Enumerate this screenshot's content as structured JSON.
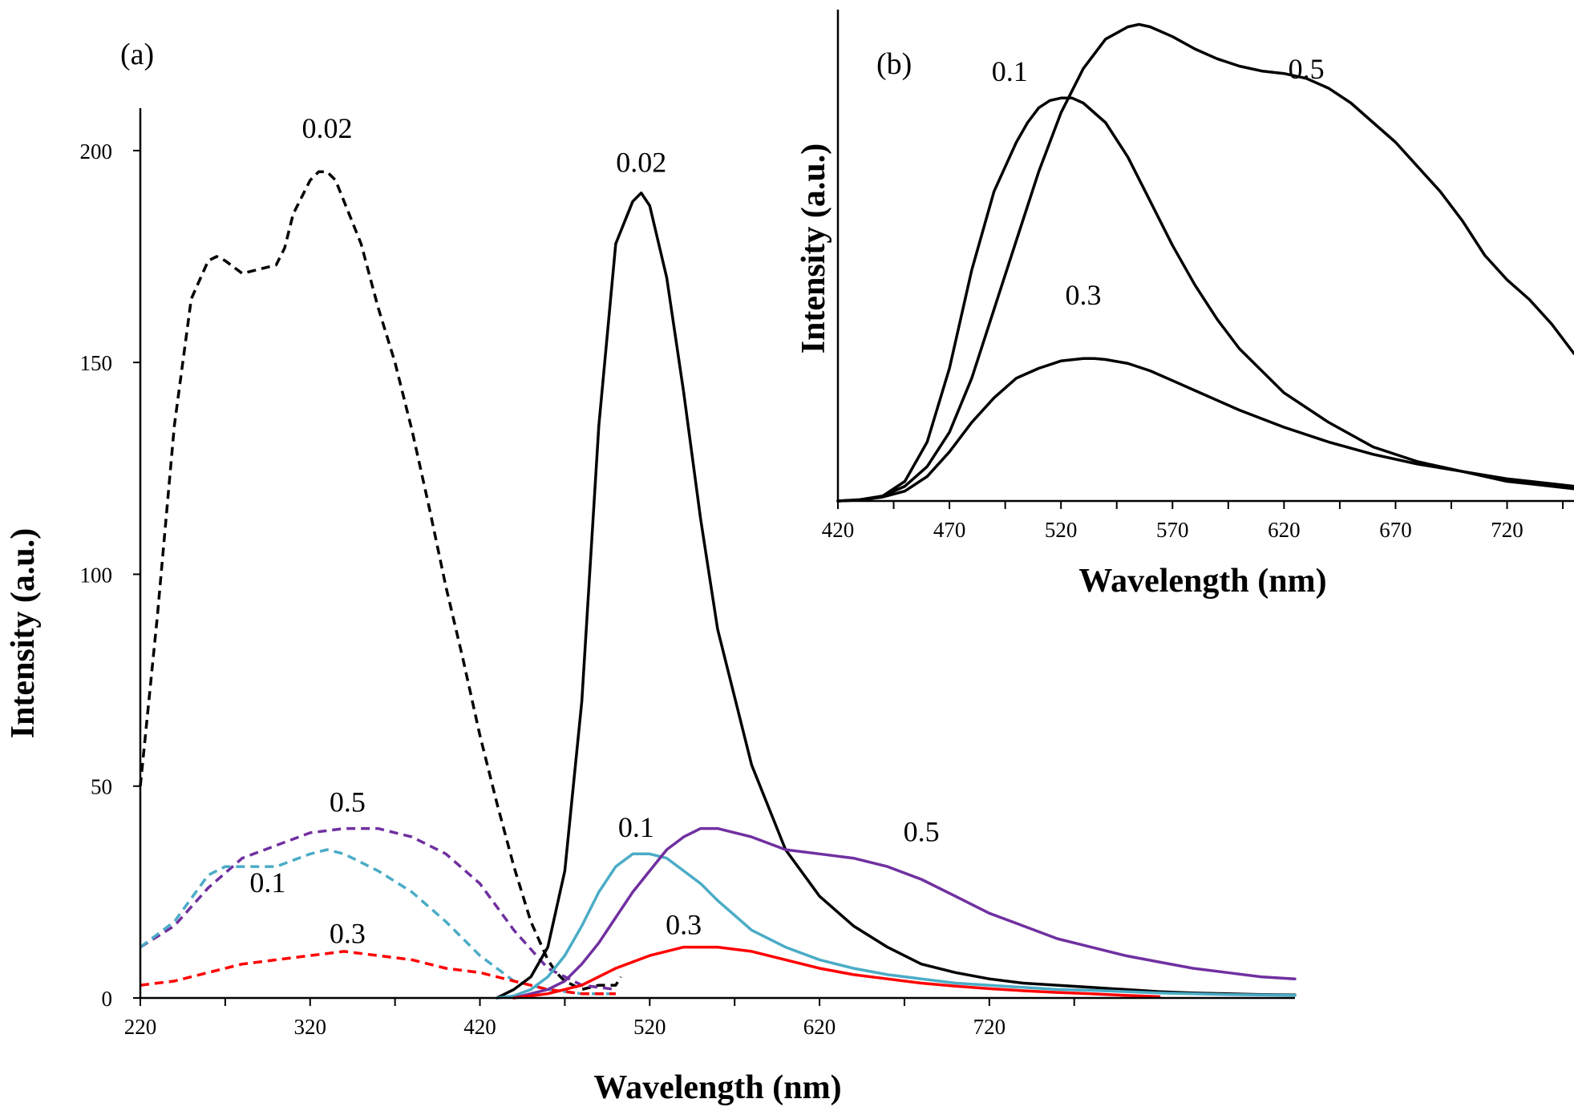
{
  "chart_data": [
    {
      "type": "line",
      "panel_label": "(a)",
      "xlabel": "Wavelength (nm)",
      "ylabel": "Intensity (a.u.)",
      "xlim": [
        220,
        900
      ],
      "ylim": [
        0,
        210
      ],
      "xticks": [
        220,
        320,
        420,
        520,
        620,
        720
      ],
      "yticks": [
        0,
        50,
        100,
        150,
        200
      ],
      "series": [
        {
          "name": "0.02 excitation",
          "label": "0.02",
          "color": "#000000",
          "dashed": true,
          "label_at": [
            330,
            203
          ],
          "x": [
            220,
            230,
            240,
            250,
            260,
            265,
            270,
            280,
            290,
            300,
            305,
            310,
            320,
            325,
            330,
            335,
            340,
            350,
            360,
            370,
            380,
            390,
            400,
            410,
            420,
            430,
            440,
            450,
            460,
            465,
            470,
            480,
            490,
            500,
            503
          ],
          "y": [
            50,
            90,
            135,
            165,
            174,
            175,
            174,
            171,
            172,
            173,
            177,
            185,
            193,
            195,
            195,
            193,
            188,
            178,
            163,
            150,
            134,
            116,
            97,
            80,
            62,
            46,
            31,
            18,
            9,
            6,
            4,
            2,
            3,
            3,
            5
          ]
        },
        {
          "name": "0.5 excitation",
          "label": "0.5",
          "color": "#7030A0",
          "dashed": true,
          "label_at": [
            342,
            44
          ],
          "x": [
            220,
            240,
            260,
            280,
            300,
            320,
            340,
            360,
            380,
            400,
            420,
            440,
            460,
            480,
            500
          ],
          "y": [
            12,
            17,
            26,
            33,
            36,
            39,
            40,
            40,
            38,
            34,
            27,
            16,
            7,
            3,
            2
          ]
        },
        {
          "name": "0.1 excitation",
          "label": "0.1",
          "color": "#4BACC6",
          "dashed": true,
          "label_at": [
            295,
            25
          ],
          "x": [
            220,
            240,
            260,
            270,
            280,
            300,
            320,
            330,
            340,
            360,
            380,
            400,
            420,
            440,
            460,
            480,
            500
          ],
          "y": [
            12,
            18,
            29,
            31,
            31,
            31,
            34,
            35,
            34,
            30,
            25,
            18,
            10,
            4,
            2,
            1,
            1
          ]
        },
        {
          "name": "0.3 excitation",
          "label": "0.3",
          "color": "#FF0000",
          "dashed": true,
          "label_at": [
            342,
            13
          ],
          "x": [
            220,
            240,
            260,
            280,
            300,
            320,
            340,
            360,
            380,
            400,
            420,
            440,
            460,
            480,
            500
          ],
          "y": [
            3,
            4,
            6,
            8,
            9,
            10,
            11,
            10,
            9,
            7,
            6,
            4,
            2,
            1,
            1
          ]
        },
        {
          "name": "0.02 emission",
          "label": "0.02",
          "color": "#000000",
          "dashed": false,
          "label_at": [
            515,
            195
          ],
          "x": [
            430,
            440,
            450,
            460,
            470,
            480,
            490,
            500,
            505,
            510,
            515,
            520,
            530,
            540,
            550,
            560,
            580,
            600,
            620,
            640,
            660,
            680,
            700,
            720,
            740,
            760,
            780,
            800,
            820,
            840,
            860,
            880,
            900
          ],
          "y": [
            0,
            2,
            5,
            12,
            30,
            70,
            135,
            178,
            183,
            188,
            190,
            187,
            170,
            143,
            113,
            87,
            55,
            35,
            24,
            17,
            12,
            8,
            6,
            4.5,
            3.5,
            3,
            2.5,
            2,
            1.5,
            1.2,
            1,
            0.8,
            0.7
          ]
        },
        {
          "name": "0.1 emission",
          "label": "0.1",
          "color": "#4BACC6",
          "dashed": false,
          "label_at": [
            512,
            38
          ],
          "x": [
            430,
            440,
            450,
            460,
            470,
            480,
            490,
            500,
            510,
            520,
            530,
            540,
            550,
            560,
            580,
            600,
            620,
            640,
            660,
            680,
            700,
            720,
            740,
            760,
            780,
            800,
            820,
            840,
            860,
            880,
            900
          ],
          "y": [
            0,
            0.5,
            2,
            5,
            10,
            17,
            25,
            31,
            34,
            34,
            33,
            30,
            27,
            23,
            16,
            12,
            9,
            7,
            5.5,
            4.5,
            3.5,
            3,
            2.5,
            2,
            1.8,
            1.5,
            1.2,
            1,
            0.8,
            0.7,
            0.6
          ]
        },
        {
          "name": "0.5 emission",
          "label": "0.5",
          "color": "#7030A0",
          "dashed": false,
          "label_at": [
            680,
            37
          ],
          "x": [
            440,
            450,
            460,
            470,
            480,
            490,
            500,
            510,
            520,
            530,
            540,
            550,
            560,
            580,
            600,
            620,
            640,
            660,
            680,
            700,
            720,
            740,
            760,
            780,
            800,
            820,
            840,
            860,
            880,
            900
          ],
          "y": [
            0,
            1,
            2,
            4,
            8,
            13,
            19,
            25,
            30,
            35,
            38,
            40,
            40,
            38,
            35,
            34,
            33,
            31,
            28,
            24,
            20,
            17,
            14,
            12,
            10,
            8.5,
            7,
            6,
            5,
            4.5
          ]
        },
        {
          "name": "0.3 emission",
          "label": "0.3",
          "color": "#FF0000",
          "dashed": false,
          "label_at": [
            540,
            15
          ],
          "x": [
            440,
            460,
            480,
            500,
            520,
            540,
            560,
            580,
            600,
            620,
            640,
            660,
            680,
            700,
            720,
            740,
            760,
            780,
            800,
            820
          ],
          "y": [
            0,
            1,
            3,
            7,
            10,
            12,
            12,
            11,
            9,
            7,
            5.5,
            4.5,
            3.5,
            2.8,
            2.2,
            1.7,
            1.3,
            1,
            0.6,
            0.3
          ]
        }
      ]
    },
    {
      "type": "line",
      "panel_label": "(b)",
      "xlabel": "Wavelength (nm)",
      "ylabel": "Intensity (a.u.)",
      "xlim": [
        420,
        750
      ],
      "ylim": [
        0,
        1
      ],
      "xticks": [
        420,
        470,
        520,
        570,
        620,
        670,
        720
      ],
      "series": [
        {
          "name": "0.1",
          "label": "0.1",
          "color": "#000000",
          "dashed": false,
          "label_at": [
            497,
            0.855
          ],
          "x": [
            420,
            430,
            440,
            450,
            460,
            470,
            480,
            490,
            500,
            505,
            510,
            515,
            520,
            525,
            530,
            540,
            550,
            560,
            570,
            580,
            590,
            600,
            620,
            640,
            660,
            680,
            700,
            720,
            740,
            750
          ],
          "y": [
            0,
            0.002,
            0.01,
            0.04,
            0.12,
            0.27,
            0.47,
            0.63,
            0.73,
            0.77,
            0.8,
            0.815,
            0.82,
            0.82,
            0.81,
            0.77,
            0.7,
            0.61,
            0.52,
            0.44,
            0.37,
            0.31,
            0.22,
            0.16,
            0.11,
            0.08,
            0.06,
            0.04,
            0.03,
            0.025
          ]
        },
        {
          "name": "0.5",
          "label": "0.5",
          "color": "#000000",
          "dashed": false,
          "label_at": [
            630,
            0.86
          ],
          "x": [
            420,
            430,
            440,
            450,
            460,
            470,
            480,
            490,
            500,
            510,
            520,
            530,
            540,
            550,
            555,
            560,
            570,
            580,
            590,
            600,
            610,
            620,
            630,
            640,
            650,
            660,
            670,
            680,
            690,
            700,
            710,
            720,
            730,
            740,
            750
          ],
          "y": [
            0,
            0.003,
            0.01,
            0.03,
            0.07,
            0.14,
            0.25,
            0.39,
            0.53,
            0.67,
            0.79,
            0.88,
            0.94,
            0.965,
            0.97,
            0.965,
            0.945,
            0.92,
            0.9,
            0.885,
            0.875,
            0.87,
            0.86,
            0.84,
            0.81,
            0.77,
            0.73,
            0.68,
            0.63,
            0.57,
            0.5,
            0.45,
            0.41,
            0.36,
            0.3
          ]
        },
        {
          "name": "0.3",
          "label": "0.3",
          "color": "#000000",
          "dashed": false,
          "label_at": [
            530,
            0.4
          ],
          "x": [
            420,
            430,
            440,
            450,
            460,
            470,
            480,
            490,
            500,
            510,
            520,
            530,
            535,
            540,
            550,
            560,
            570,
            580,
            600,
            620,
            640,
            660,
            680,
            700,
            720,
            740,
            750
          ],
          "y": [
            0,
            0.002,
            0.008,
            0.02,
            0.05,
            0.1,
            0.16,
            0.21,
            0.25,
            0.27,
            0.285,
            0.29,
            0.29,
            0.288,
            0.28,
            0.265,
            0.245,
            0.225,
            0.185,
            0.15,
            0.12,
            0.095,
            0.075,
            0.06,
            0.045,
            0.035,
            0.03
          ]
        }
      ]
    }
  ]
}
